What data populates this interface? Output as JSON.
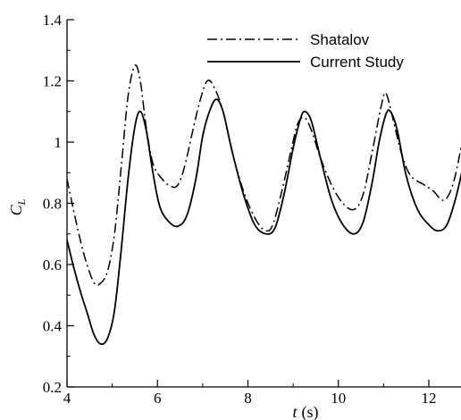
{
  "chart_data": {
    "type": "line",
    "xlabel_var": "t",
    "xlabel_unit": "(s)",
    "ylabel_var": "C",
    "ylabel_sub": "L",
    "xlim": [
      4,
      13
    ],
    "ylim": [
      0.2,
      1.4
    ],
    "x_ticks": [
      4,
      6,
      8,
      10,
      12
    ],
    "x_tick_labels": [
      "4",
      "6",
      "8",
      "10",
      "12"
    ],
    "y_ticks": [
      0.2,
      0.4,
      0.6,
      0.8,
      1.0,
      1.2,
      1.4
    ],
    "y_tick_labels": [
      "0.2",
      "0.4",
      "0.6",
      "0.8",
      "1",
      "1.2",
      "1.4"
    ],
    "legend_position": "top-right",
    "series": [
      {
        "name": "Shatalov",
        "style": "dash-dot",
        "points": [
          [
            4.0,
            0.88
          ],
          [
            4.2,
            0.74
          ],
          [
            4.4,
            0.62
          ],
          [
            4.6,
            0.54
          ],
          [
            4.75,
            0.54
          ],
          [
            4.9,
            0.58
          ],
          [
            5.05,
            0.7
          ],
          [
            5.2,
            0.92
          ],
          [
            5.35,
            1.15
          ],
          [
            5.5,
            1.25
          ],
          [
            5.62,
            1.2
          ],
          [
            5.75,
            1.05
          ],
          [
            5.9,
            0.93
          ],
          [
            6.1,
            0.88
          ],
          [
            6.3,
            0.855
          ],
          [
            6.45,
            0.86
          ],
          [
            6.6,
            0.92
          ],
          [
            6.8,
            1.05
          ],
          [
            6.95,
            1.14
          ],
          [
            7.1,
            1.2
          ],
          [
            7.25,
            1.18
          ],
          [
            7.45,
            1.1
          ],
          [
            7.7,
            0.94
          ],
          [
            7.95,
            0.82
          ],
          [
            8.2,
            0.74
          ],
          [
            8.4,
            0.71
          ],
          [
            8.55,
            0.73
          ],
          [
            8.75,
            0.84
          ],
          [
            8.95,
            0.97
          ],
          [
            9.1,
            1.06
          ],
          [
            9.25,
            1.08
          ],
          [
            9.4,
            1.04
          ],
          [
            9.6,
            0.95
          ],
          [
            9.85,
            0.86
          ],
          [
            10.1,
            0.8
          ],
          [
            10.35,
            0.78
          ],
          [
            10.55,
            0.83
          ],
          [
            10.75,
            0.97
          ],
          [
            10.95,
            1.12
          ],
          [
            11.05,
            1.16
          ],
          [
            11.2,
            1.08
          ],
          [
            11.4,
            0.96
          ],
          [
            11.6,
            0.89
          ],
          [
            11.9,
            0.86
          ],
          [
            12.1,
            0.84
          ],
          [
            12.3,
            0.81
          ],
          [
            12.45,
            0.83
          ],
          [
            12.6,
            0.9
          ],
          [
            12.8,
            1.05
          ],
          [
            12.95,
            1.15
          ]
        ]
      },
      {
        "name": "Current Study",
        "style": "solid",
        "points": [
          [
            4.0,
            0.68
          ],
          [
            4.15,
            0.59
          ],
          [
            4.3,
            0.51
          ],
          [
            4.45,
            0.44
          ],
          [
            4.6,
            0.37
          ],
          [
            4.75,
            0.34
          ],
          [
            4.9,
            0.36
          ],
          [
            5.05,
            0.45
          ],
          [
            5.2,
            0.65
          ],
          [
            5.35,
            0.88
          ],
          [
            5.5,
            1.05
          ],
          [
            5.62,
            1.1
          ],
          [
            5.75,
            1.04
          ],
          [
            5.9,
            0.9
          ],
          [
            6.05,
            0.79
          ],
          [
            6.25,
            0.74
          ],
          [
            6.45,
            0.725
          ],
          [
            6.65,
            0.76
          ],
          [
            6.85,
            0.88
          ],
          [
            7.0,
            1.02
          ],
          [
            7.15,
            1.1
          ],
          [
            7.3,
            1.14
          ],
          [
            7.45,
            1.1
          ],
          [
            7.65,
            0.97
          ],
          [
            7.9,
            0.83
          ],
          [
            8.15,
            0.73
          ],
          [
            8.4,
            0.7
          ],
          [
            8.6,
            0.72
          ],
          [
            8.8,
            0.83
          ],
          [
            9.0,
            0.98
          ],
          [
            9.15,
            1.07
          ],
          [
            9.25,
            1.1
          ],
          [
            9.4,
            1.07
          ],
          [
            9.6,
            0.95
          ],
          [
            9.85,
            0.81
          ],
          [
            10.1,
            0.73
          ],
          [
            10.35,
            0.7
          ],
          [
            10.55,
            0.74
          ],
          [
            10.75,
            0.87
          ],
          [
            10.9,
            1.0
          ],
          [
            11.05,
            1.09
          ],
          [
            11.15,
            1.1
          ],
          [
            11.3,
            1.04
          ],
          [
            11.5,
            0.89
          ],
          [
            11.75,
            0.78
          ],
          [
            12.0,
            0.73
          ],
          [
            12.2,
            0.71
          ],
          [
            12.4,
            0.73
          ],
          [
            12.6,
            0.82
          ],
          [
            12.8,
            0.95
          ],
          [
            12.97,
            1.07
          ]
        ]
      }
    ]
  }
}
